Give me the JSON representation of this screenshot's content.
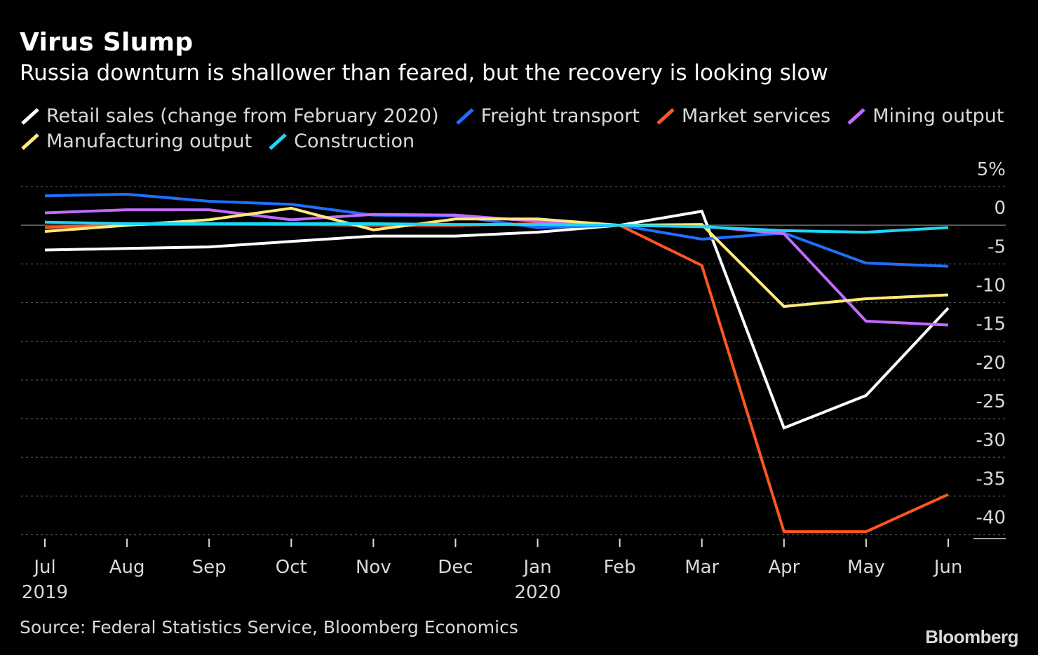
{
  "title": "Virus Slump",
  "subtitle": "Russia downturn is shallower than feared, but the recovery is looking slow",
  "source": "Source: Federal Statistics Service, Bloomberg Economics",
  "logo": "Bloomberg",
  "chart_data": {
    "type": "line",
    "categories": [
      "Jul",
      "Aug",
      "Sep",
      "Oct",
      "Nov",
      "Dec",
      "Jan",
      "Feb",
      "Mar",
      "Apr",
      "May",
      "Jun"
    ],
    "year_labels": [
      "2019",
      "",
      "",
      "",
      "",
      "",
      "2020",
      "",
      "",
      "",
      "",
      ""
    ],
    "y_ticks": [
      "5%",
      "0",
      "-5",
      "-10",
      "-15",
      "-20",
      "-25",
      "-30",
      "-35",
      "-40"
    ],
    "y_tick_values": [
      5,
      0,
      -5,
      -10,
      -15,
      -20,
      -25,
      -30,
      -35,
      -40
    ],
    "ylim": [
      -40.5,
      5
    ],
    "grid": true,
    "legend_position": "top",
    "series": [
      {
        "name": "Retail sales (change from February 2020)",
        "color": "#ffffff",
        "values": [
          -3.2,
          -3.0,
          -2.8,
          -2.1,
          -1.4,
          -1.4,
          -0.9,
          0,
          1.8,
          -26.2,
          -22.0,
          -10.7
        ]
      },
      {
        "name": "Freight transport",
        "color": "#1f6fff",
        "values": [
          3.8,
          4.0,
          3.1,
          2.7,
          1.3,
          1.2,
          -0.3,
          0,
          -1.8,
          -1.0,
          -4.9,
          -5.3
        ]
      },
      {
        "name": "Market services",
        "color": "#ff5722",
        "values": [
          -0.3,
          0.1,
          0.2,
          0.1,
          0.0,
          0.0,
          0.2,
          0,
          -5.2,
          -39.6,
          -39.6,
          -34.8
        ]
      },
      {
        "name": "Mining output",
        "color": "#c06bff",
        "values": [
          1.6,
          2.0,
          2.0,
          0.7,
          1.4,
          1.3,
          0.5,
          0,
          -0.1,
          -1.1,
          -12.4,
          -12.9
        ]
      },
      {
        "name": "Manufacturing output",
        "color": "#ffe97a",
        "values": [
          -0.8,
          0.0,
          0.7,
          2.2,
          -0.6,
          0.8,
          0.8,
          0,
          0.1,
          -10.5,
          -9.5,
          -9.0
        ]
      },
      {
        "name": "Construction",
        "color": "#1ed7f4",
        "values": [
          0.4,
          0.2,
          0.2,
          0.2,
          0.2,
          0.1,
          0.1,
          0,
          -0.2,
          -0.7,
          -0.9,
          -0.3
        ]
      }
    ]
  }
}
